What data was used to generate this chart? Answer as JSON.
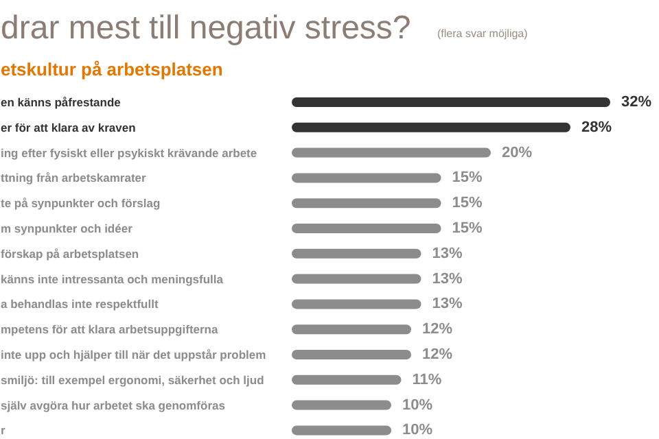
{
  "chart_data": {
    "type": "bar",
    "orientation": "horizontal",
    "title": "drar mest till negativ stress?",
    "subtitle": "(flera svar möjliga)",
    "annotations": [
      "etskultur på arbetsplatsen"
    ],
    "categories": [
      "en känns påfrestande",
      "er för att klara av kraven",
      "ing efter fysiskt eller psykiskt krävande arbete",
      "ttning från arbetskamrater",
      "te på synpunkter och förslag",
      "m synpunkter och idéer",
      "förskap på arbetsplatsen",
      "känns inte intressanta och meningsfulla",
      "a behandlas inte respektfullt",
      "mpetens för att klara arbetsuppgifterna",
      "inte upp och hjälper till när det uppstår problem",
      "smiljö: till exempel ergonomi, säkerhet och ljud",
      "själv avgöra hur arbetet ska genomföras",
      "r"
    ],
    "values": [
      32,
      28,
      20,
      15,
      15,
      15,
      13,
      13,
      13,
      12,
      12,
      11,
      10,
      10
    ],
    "colors": [
      "#333333",
      "#333333",
      "#8c8c8c",
      "#8c8c8c",
      "#8c8c8c",
      "#8c8c8c",
      "#8c8c8c",
      "#8c8c8c",
      "#8c8c8c",
      "#8c8c8c",
      "#8c8c8c",
      "#8c8c8c",
      "#8c8c8c",
      "#8c8c8c"
    ],
    "value_labels": [
      "32%",
      "28%",
      "20%",
      "15%",
      "15%",
      "15%",
      "13%",
      "13%",
      "13%",
      "12%",
      "12%",
      "11%",
      "10%",
      "10%"
    ],
    "tick_labels": false,
    "grid": false
  }
}
